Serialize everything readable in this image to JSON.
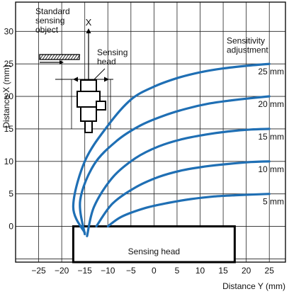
{
  "chart_data": {
    "type": "line",
    "xlabel": "Distance Y (mm)",
    "ylabel": "Distance X (mm)",
    "xlim": [
      -30,
      28.5
    ],
    "ylim": [
      -5.5,
      34.5
    ],
    "x_ticks": [
      -25,
      -20,
      -15,
      -10,
      -5,
      0,
      5,
      10,
      15,
      20,
      25
    ],
    "y_ticks": [
      0,
      5,
      10,
      15,
      20,
      25,
      30
    ],
    "grid": true,
    "series_color": "#1f6fb4",
    "legend_title": "Sensitivity\nadjustment",
    "series": [
      {
        "name": "25 mm",
        "x": [
          -15,
          -17.5,
          -15,
          -10,
          -5,
          0,
          5,
          10,
          15,
          20,
          25
        ],
        "y": [
          -1,
          3,
          10,
          15.5,
          19.5,
          21.5,
          22.8,
          23.7,
          24.3,
          24.7,
          25
        ]
      },
      {
        "name": "20 mm",
        "x": [
          -15,
          -16,
          -13,
          -8,
          -3,
          2,
          7,
          12,
          17,
          22,
          25
        ],
        "y": [
          -1.2,
          4,
          9.5,
          13.2,
          15.5,
          17,
          18.1,
          18.9,
          19.4,
          19.8,
          20
        ]
      },
      {
        "name": "15 mm",
        "x": [
          -14.5,
          -13,
          -9,
          -4,
          1,
          6,
          11,
          16,
          21,
          25
        ],
        "y": [
          -1.5,
          3,
          7.5,
          10.5,
          12.3,
          13.4,
          14.1,
          14.6,
          14.9,
          15
        ]
      },
      {
        "name": "10 mm",
        "x": [
          -12.5,
          -9,
          -4,
          1,
          6,
          11,
          16,
          21,
          25
        ],
        "y": [
          0,
          3.5,
          6,
          7.6,
          8.6,
          9.2,
          9.6,
          9.9,
          10
        ]
      },
      {
        "name": "5 mm",
        "x": [
          -10,
          -7,
          -2,
          3,
          8,
          13,
          18,
          25
        ],
        "y": [
          0,
          1.5,
          2.8,
          3.6,
          4.2,
          4.6,
          4.8,
          5
        ]
      }
    ],
    "annotations": {
      "standard_object": "Standard\nsensing\nobject",
      "axis_x_marker": "X",
      "sensing_head_top": "Sensing\nhead",
      "sensing_head_box": "Sensing head"
    }
  }
}
